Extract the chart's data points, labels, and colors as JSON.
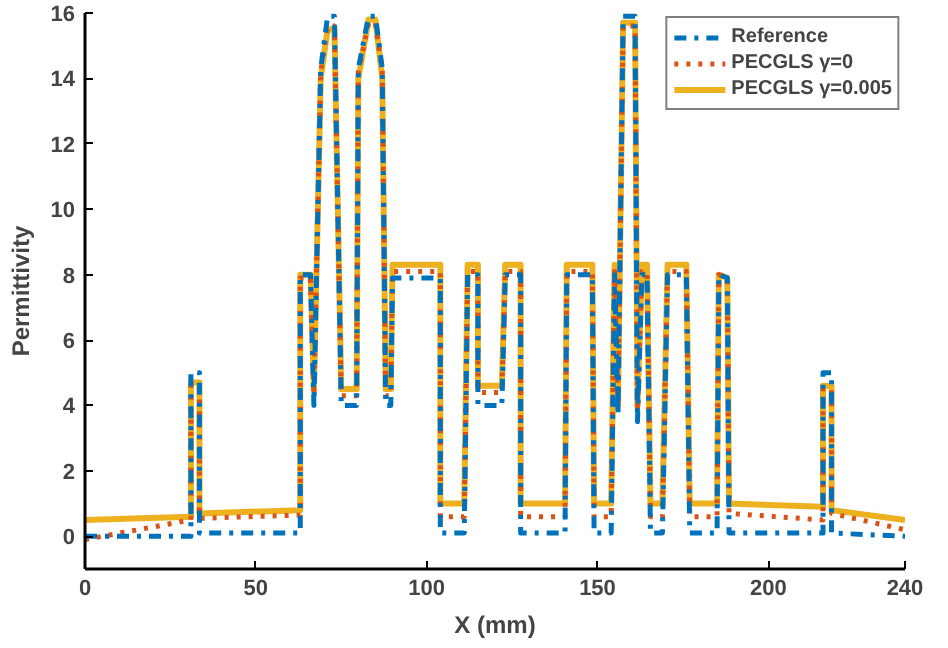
{
  "chart_data": {
    "type": "line",
    "xlabel": "X (mm)",
    "ylabel": "Permittivity",
    "xlim": [
      0,
      240
    ],
    "ylim": [
      -1,
      16
    ],
    "xticks": [
      0,
      50,
      100,
      150,
      200,
      240
    ],
    "yticks": [
      0,
      2,
      4,
      6,
      8,
      10,
      12,
      14,
      16
    ],
    "grid": false,
    "legend": "top right",
    "marker": "none",
    "series": [
      {
        "name": "Reference",
        "color": "#0072bd",
        "line_style": "dashed",
        "x": [
          0,
          31,
          31,
          33.5,
          33.5,
          63,
          63,
          66,
          67,
          69,
          71,
          73,
          75,
          79.5,
          80,
          83,
          85,
          87,
          88,
          89.5,
          90,
          104,
          104,
          111,
          112,
          115,
          115,
          122,
          123,
          127.5,
          127.5,
          140.5,
          141,
          148.5,
          149,
          154,
          155,
          156,
          157.5,
          161,
          161.7,
          163,
          164.5,
          165.5,
          169,
          170.5,
          176,
          177,
          185,
          185.5,
          188,
          188.5,
          216,
          216,
          218.5,
          218.5,
          240
        ],
        "values": [
          0,
          0,
          5,
          5,
          0.1,
          0.1,
          8,
          8,
          4,
          14.3,
          15.9,
          15.9,
          4,
          4,
          14.3,
          15.9,
          15.9,
          14.3,
          4,
          4,
          7.9,
          7.9,
          0.1,
          0.1,
          8,
          8,
          4,
          4,
          8,
          8,
          0.1,
          0.1,
          8,
          8,
          0.1,
          0.1,
          8,
          3.7,
          15.9,
          15.9,
          3.5,
          8,
          8,
          0.1,
          0.1,
          8,
          8,
          0.1,
          0.1,
          8,
          7.9,
          0.1,
          0.1,
          5,
          5,
          0.1,
          0
        ]
      },
      {
        "name": "PECGLS γ=0",
        "color": "#d95319",
        "line_style": "dotted",
        "x": [
          0,
          31,
          31,
          33.5,
          33.5,
          63,
          63,
          66,
          67,
          69,
          71,
          73,
          75,
          79.5,
          80,
          83,
          85,
          87,
          88,
          89.5,
          90,
          104,
          104,
          111,
          112,
          115,
          115,
          122,
          123,
          127.5,
          127.5,
          140.5,
          141,
          148.5,
          149,
          154,
          155,
          156,
          157.5,
          161,
          161.7,
          163,
          164.5,
          165.5,
          169,
          170.5,
          176,
          177,
          185,
          185.5,
          188,
          188.5,
          216,
          216,
          218.5,
          218.5,
          240
        ],
        "values": [
          -0.1,
          0.5,
          4.6,
          4.6,
          0.55,
          0.65,
          7.9,
          7.9,
          4.3,
          14.2,
          15.6,
          15.6,
          4.3,
          4.3,
          14.2,
          15.7,
          15.7,
          14.2,
          4.3,
          4.3,
          8.1,
          8.1,
          0.6,
          0.6,
          8.1,
          8.1,
          4.4,
          4.4,
          8.1,
          8.1,
          0.6,
          0.6,
          8.1,
          8.1,
          0.6,
          0.6,
          8.1,
          3.9,
          15.6,
          15.6,
          3.8,
          8.1,
          8.1,
          0.6,
          0.6,
          8.1,
          8.1,
          0.6,
          0.6,
          8,
          7.9,
          0.7,
          0.5,
          4.5,
          4.5,
          0.7,
          0.2
        ]
      },
      {
        "name": "PECGLS γ=0.005",
        "color": "#edb120",
        "line_style": "solid",
        "x": [
          0,
          31,
          31,
          33.5,
          33.5,
          63,
          63,
          66,
          67,
          69,
          71,
          73,
          75,
          79.5,
          80,
          83,
          85,
          87,
          88,
          89.5,
          90,
          104,
          104,
          111,
          112,
          115,
          115,
          122,
          123,
          127.5,
          127.5,
          140.5,
          141,
          148.5,
          149,
          154,
          155,
          156,
          157.5,
          161,
          161.7,
          163,
          164.5,
          165.5,
          169,
          170.5,
          176,
          177,
          185,
          185.5,
          188,
          188.5,
          216,
          216,
          218.5,
          218.5,
          240
        ],
        "values": [
          0.5,
          0.6,
          4.7,
          4.7,
          0.7,
          0.8,
          8,
          8,
          4.5,
          14,
          15.5,
          15.5,
          4.5,
          4.5,
          14,
          15.8,
          15.8,
          14,
          4.5,
          4.5,
          8.3,
          8.3,
          1,
          1,
          8.3,
          8.3,
          4.6,
          4.6,
          8.3,
          8.3,
          1,
          1,
          8.3,
          8.3,
          1,
          1,
          8.3,
          4,
          15.7,
          15.7,
          4,
          8.3,
          8.3,
          1,
          1,
          8.3,
          8.3,
          1,
          1,
          8,
          7.9,
          1,
          0.9,
          4.6,
          4.6,
          0.8,
          0.5
        ]
      }
    ]
  }
}
